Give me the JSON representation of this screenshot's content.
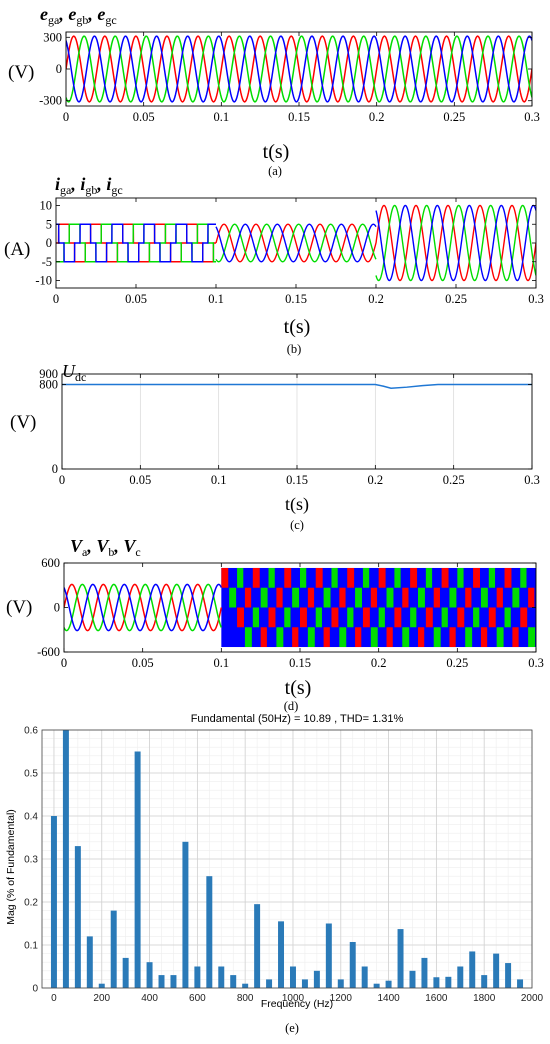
{
  "chart_data": [
    {
      "type": "line",
      "title_parts": [
        [
          "e",
          "ga"
        ],
        [
          "e",
          "gb"
        ],
        [
          "e",
          "gc"
        ]
      ],
      "ylabel": "(V)",
      "xlabel": "t(s)",
      "caption": "(a)",
      "xlim": [
        0,
        0.3
      ],
      "ylim": [
        -350,
        350
      ],
      "xticks": [
        "0",
        "0.05",
        "0.1",
        "0.15",
        "0.2",
        "0.25",
        "0.3"
      ],
      "yticks": [
        "300",
        "0",
        "-300"
      ],
      "grid": false,
      "series": [
        {
          "color": "#ff0000",
          "amplitude": 311,
          "frequency_hz": 50,
          "phase_deg": 0
        },
        {
          "color": "#00dd00",
          "amplitude": 311,
          "frequency_hz": 50,
          "phase_deg": -120
        },
        {
          "color": "#0000ff",
          "amplitude": 311,
          "frequency_hz": 50,
          "phase_deg": 120
        }
      ]
    },
    {
      "type": "line",
      "title_parts": [
        [
          "i",
          "ga"
        ],
        [
          "i",
          "gb"
        ],
        [
          "i",
          "gc"
        ]
      ],
      "ylabel": "(A)",
      "xlabel": "t(s)",
      "caption": "(b)",
      "xlim": [
        0,
        0.3
      ],
      "ylim": [
        -12,
        12
      ],
      "xticks": [
        "0",
        "0.05",
        "0.1",
        "0.15",
        "0.2",
        "0.25",
        "0.3"
      ],
      "yticks": [
        "10",
        "5",
        "0",
        "-5",
        "-10"
      ],
      "grid": false,
      "segments": [
        {
          "t_start": 0,
          "t_end": 0.1,
          "shape": "quasi-square",
          "amplitude": 5
        },
        {
          "t_start": 0.1,
          "t_end": 0.2,
          "shape": "sine",
          "amplitude": 5
        },
        {
          "t_start": 0.2,
          "t_end": 0.3,
          "shape": "sine",
          "amplitude": 10
        }
      ],
      "series": [
        {
          "color": "#ff0000",
          "frequency_hz": 50,
          "phase_deg": 0
        },
        {
          "color": "#00dd00",
          "frequency_hz": 50,
          "phase_deg": -120
        },
        {
          "color": "#0000ff",
          "frequency_hz": 50,
          "phase_deg": 120
        }
      ]
    },
    {
      "type": "line",
      "title_parts": [
        [
          "U",
          "dc"
        ]
      ],
      "ylabel": "(V)",
      "xlabel": "t(s)",
      "caption": "(c)",
      "xlim": [
        0,
        0.3
      ],
      "ylim": [
        0,
        900
      ],
      "xticks": [
        "0",
        "0.05",
        "0.1",
        "0.15",
        "0.2",
        "0.25",
        "0.3"
      ],
      "yticks": [
        "900",
        "800",
        "0"
      ],
      "grid": true,
      "series": [
        {
          "color": "#1f77d4",
          "points": [
            [
              0,
              800
            ],
            [
              0.1,
              800
            ],
            [
              0.2,
              800
            ],
            [
              0.205,
              785
            ],
            [
              0.21,
              765
            ],
            [
              0.22,
              775
            ],
            [
              0.23,
              790
            ],
            [
              0.24,
              800
            ],
            [
              0.3,
              800
            ]
          ]
        }
      ]
    },
    {
      "type": "line",
      "title_parts": [
        [
          "V",
          "a"
        ],
        [
          "V",
          "b"
        ],
        [
          "V",
          "c"
        ]
      ],
      "ylabel": "(V)",
      "xlabel": "t(s)",
      "caption": "(d)",
      "xlim": [
        0,
        0.3
      ],
      "ylim": [
        -600,
        600
      ],
      "xticks": [
        "0",
        "0.05",
        "0.1",
        "0.15",
        "0.2",
        "0.25",
        "0.3"
      ],
      "yticks": [
        "600",
        "0",
        "-600"
      ],
      "grid": false,
      "segments": [
        {
          "t_start": 0,
          "t_end": 0.1,
          "shape": "sine",
          "amplitude": 311
        },
        {
          "t_start": 0.1,
          "t_end": 0.3,
          "shape": "pwm",
          "levels": [
            -533,
            0,
            533
          ]
        }
      ],
      "series": [
        {
          "color": "#ff0000",
          "frequency_hz": 50,
          "phase_deg": 0
        },
        {
          "color": "#00dd00",
          "frequency_hz": 50,
          "phase_deg": -120
        },
        {
          "color": "#0000ff",
          "frequency_hz": 50,
          "phase_deg": 120
        }
      ]
    },
    {
      "type": "bar",
      "title": "Fundamental (50Hz) = 10.89 , THD= 1.31%",
      "xlabel": "Frequency (Hz)",
      "ylabel": "Mag (% of Fundamental)",
      "caption": "(e)",
      "xlim": [
        -50,
        2000
      ],
      "ylim": [
        0,
        0.6
      ],
      "xticks": [
        "0",
        "200",
        "400",
        "600",
        "800",
        "1000",
        "1200",
        "1400",
        "1600",
        "1800",
        "2000"
      ],
      "yticks": [
        "0",
        "0.1",
        "0.2",
        "0.3",
        "0.4",
        "0.5",
        "0.6"
      ],
      "grid": true,
      "bar_color": "#2a7ab8",
      "x": [
        0,
        50,
        100,
        150,
        200,
        250,
        300,
        350,
        400,
        450,
        500,
        550,
        600,
        650,
        700,
        750,
        800,
        850,
        900,
        950,
        1000,
        1050,
        1100,
        1150,
        1200,
        1250,
        1300,
        1350,
        1400,
        1450,
        1500,
        1550,
        1600,
        1650,
        1700,
        1750,
        1800,
        1850,
        1900,
        1950
      ],
      "values": [
        0.4,
        0.6,
        0.33,
        0.12,
        0.01,
        0.18,
        0.07,
        0.55,
        0.06,
        0.03,
        0.03,
        0.34,
        0.05,
        0.26,
        0.05,
        0.03,
        0.01,
        0.195,
        0.02,
        0.155,
        0.05,
        0.02,
        0.04,
        0.15,
        0.02,
        0.107,
        0.05,
        0.01,
        0.017,
        0.137,
        0.04,
        0.07,
        0.025,
        0.026,
        0.05,
        0.085,
        0.03,
        0.08,
        0.058,
        0.02
      ]
    }
  ]
}
